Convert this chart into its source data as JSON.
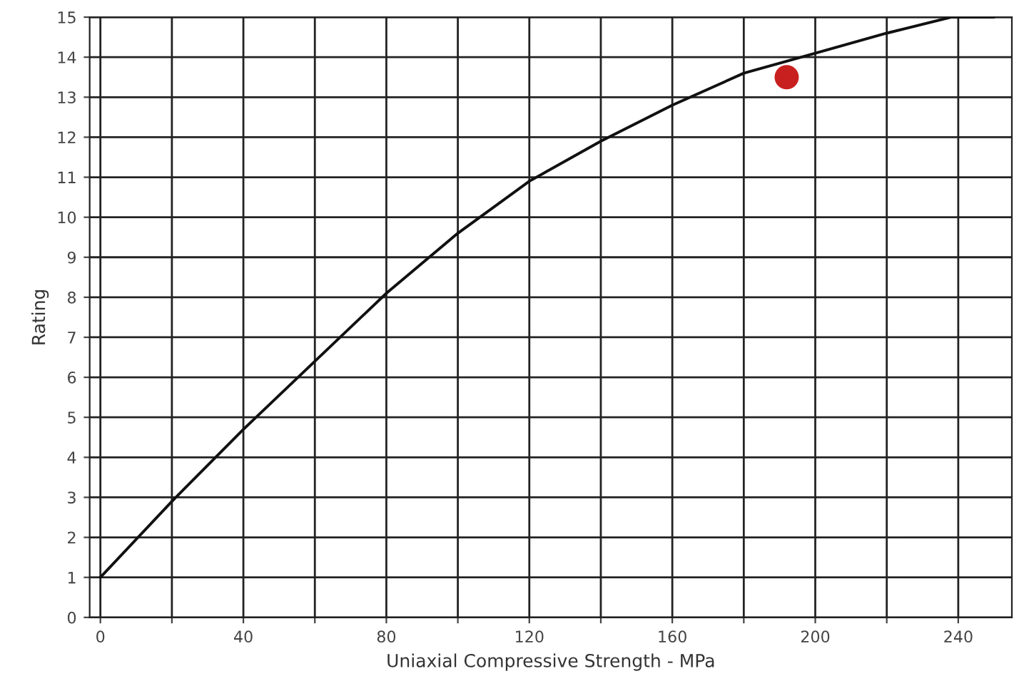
{
  "chart_data": {
    "type": "line",
    "xlabel": "Uniaxial Compressive Strength - MPa",
    "ylabel": "Rating",
    "xlim": [
      -3,
      255
    ],
    "ylim": [
      0,
      15
    ],
    "xticks": [
      0,
      {
        "value": 20,
        "label": null
      },
      40,
      {
        "value": 60,
        "label": null
      },
      80,
      {
        "value": 100,
        "label": null
      },
      120,
      {
        "value": 140,
        "label": null
      },
      160,
      {
        "value": 180,
        "label": null
      },
      200,
      {
        "value": 220,
        "label": null
      },
      240
    ],
    "yticks": [
      0,
      1,
      2,
      3,
      4,
      5,
      6,
      7,
      8,
      9,
      10,
      11,
      12,
      13,
      14,
      15
    ],
    "grid": true,
    "line_style": "solid",
    "series": [
      {
        "marker": "none",
        "color": "#111111",
        "x": [
          0,
          20,
          40,
          60,
          80,
          100,
          120,
          140,
          160,
          180,
          200,
          220,
          238,
          250
        ],
        "values": [
          1.0,
          2.9,
          4.7,
          6.4,
          8.1,
          9.6,
          10.9,
          11.9,
          12.8,
          13.6,
          14.1,
          14.6,
          15.0,
          15.0
        ]
      },
      {
        "type": "scatter",
        "marker": "circle",
        "color": "#c8201e",
        "x": [
          192
        ],
        "values": [
          13.5
        ]
      }
    ]
  }
}
